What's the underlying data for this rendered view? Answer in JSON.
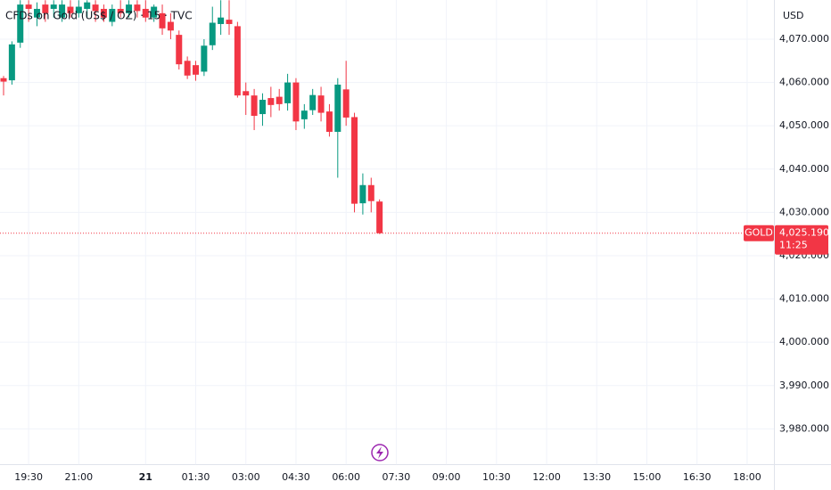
{
  "chart_data": {
    "type": "candlestick",
    "title": "CFDs on Gold (US$ / OZ) · 15 · TVC",
    "currency": "USD",
    "x": [
      "18:45",
      "19:00",
      "19:15",
      "19:30",
      "19:45",
      "20:00",
      "20:15",
      "20:30",
      "20:45",
      "21:00",
      "21:15",
      "21:30",
      "21:45",
      "22:00",
      "22:15",
      "22:30",
      "22:45",
      "00:00",
      "00:15",
      "00:30",
      "00:45",
      "01:00",
      "01:15",
      "01:30",
      "01:45",
      "02:00",
      "02:15",
      "02:30",
      "02:45",
      "03:00",
      "03:15",
      "03:30",
      "03:45",
      "04:00",
      "04:15",
      "04:30",
      "04:45",
      "05:00",
      "05:15",
      "05:30",
      "05:45",
      "06:00",
      "06:15",
      "06:30",
      "06:45",
      "07:00"
    ],
    "open": [
      4061,
      4060.5,
      4069.2,
      4078,
      4075,
      4078,
      4077,
      4075,
      4077.5,
      4076,
      4077,
      4078,
      4077,
      4074,
      4077,
      4076,
      4078,
      4077,
      4075,
      4076,
      4074,
      4071,
      4065,
      4064,
      4062.5,
      4068.6,
      4073.5,
      4074.5,
      4073,
      4058,
      4057,
      4052.7,
      4056.4,
      4056.7,
      4055.2,
      4060,
      4051.5,
      4053.6,
      4057,
      4053.3,
      4048.6,
      4058.4,
      4052,
      4032.1,
      4036.3,
      4032.5
    ],
    "high": [
      4061.5,
      4069.5,
      4079,
      4079,
      4078.5,
      4079,
      4079,
      4079,
      4079,
      4079,
      4079,
      4079,
      4078,
      4078,
      4079,
      4079,
      4079,
      4079,
      4078,
      4078,
      4076,
      4072,
      4066,
      4065,
      4070,
      4077.5,
      4079,
      4079,
      4074,
      4060,
      4058.5,
      4057.5,
      4059,
      4058.5,
      4062,
      4061,
      4055,
      4058.5,
      4059,
      4055,
      4061,
      4065,
      4053,
      4039,
      4038,
      4033
    ],
    "low": [
      4057,
      4059.5,
      4068,
      4074,
      4073,
      4074,
      4075,
      4074,
      4075,
      4075,
      4075,
      4074,
      4074,
      4073,
      4075,
      4075,
      4075,
      4074,
      4074,
      4071,
      4070,
      4063,
      4060.8,
      4060.4,
      4061.5,
      4067.5,
      4071,
      4071,
      4056.5,
      4052.5,
      4049,
      4050,
      4052,
      4053.5,
      4053.5,
      4049,
      4049.3,
      4052.5,
      4051,
      4047.5,
      4038,
      4050,
      4030,
      4029.5,
      4030,
      4025
    ],
    "close": [
      4060.2,
      4068.8,
      4078,
      4077,
      4077,
      4076,
      4078,
      4078,
      4076,
      4077.5,
      4078.5,
      4076.5,
      4075,
      4077,
      4076,
      4078,
      4076.5,
      4075,
      4077.5,
      4072.5,
      4072,
      4064.2,
      4061.6,
      4061.8,
      4068.5,
      4073.8,
      4075,
      4073.5,
      4057,
      4057,
      4052.3,
      4056,
      4054.8,
      4055,
      4060,
      4051,
      4053.5,
      4057.1,
      4053,
      4048.6,
      4059.5,
      4051.9,
      4032,
      4036.3,
      4032.6,
      4025.19
    ],
    "up_color": "#089981",
    "down_color": "#f23645",
    "ylim": [
      3971.8,
      4079.05
    ],
    "yticks": [
      {
        "value": 4070,
        "label": "4,070.000"
      },
      {
        "value": 4060,
        "label": "4,060.000"
      },
      {
        "value": 4050,
        "label": "4,050.000"
      },
      {
        "value": 4040,
        "label": "4,040.000"
      },
      {
        "value": 4030,
        "label": "4,030.000"
      },
      {
        "value": 4020,
        "label": "4,020.000"
      },
      {
        "value": 4010,
        "label": "4,010.000"
      },
      {
        "value": 4000,
        "label": "4,000.000"
      },
      {
        "value": 3990,
        "label": "3,990.000"
      },
      {
        "value": 3980,
        "label": "3,980.000"
      }
    ],
    "xticks": [
      "19:30",
      "21:00",
      {
        "value": "00:00",
        "label": "21"
      },
      "01:30",
      "03:00",
      "04:30",
      "06:00",
      "07:30",
      "09:00",
      "10:30",
      "12:00",
      "13:30",
      "15:00",
      "16:30",
      "18:00"
    ],
    "grid": true,
    "price_label": {
      "symbol": "GOLD",
      "value": 4025.19,
      "label": "4,025.190",
      "countdown": "11:25"
    }
  }
}
